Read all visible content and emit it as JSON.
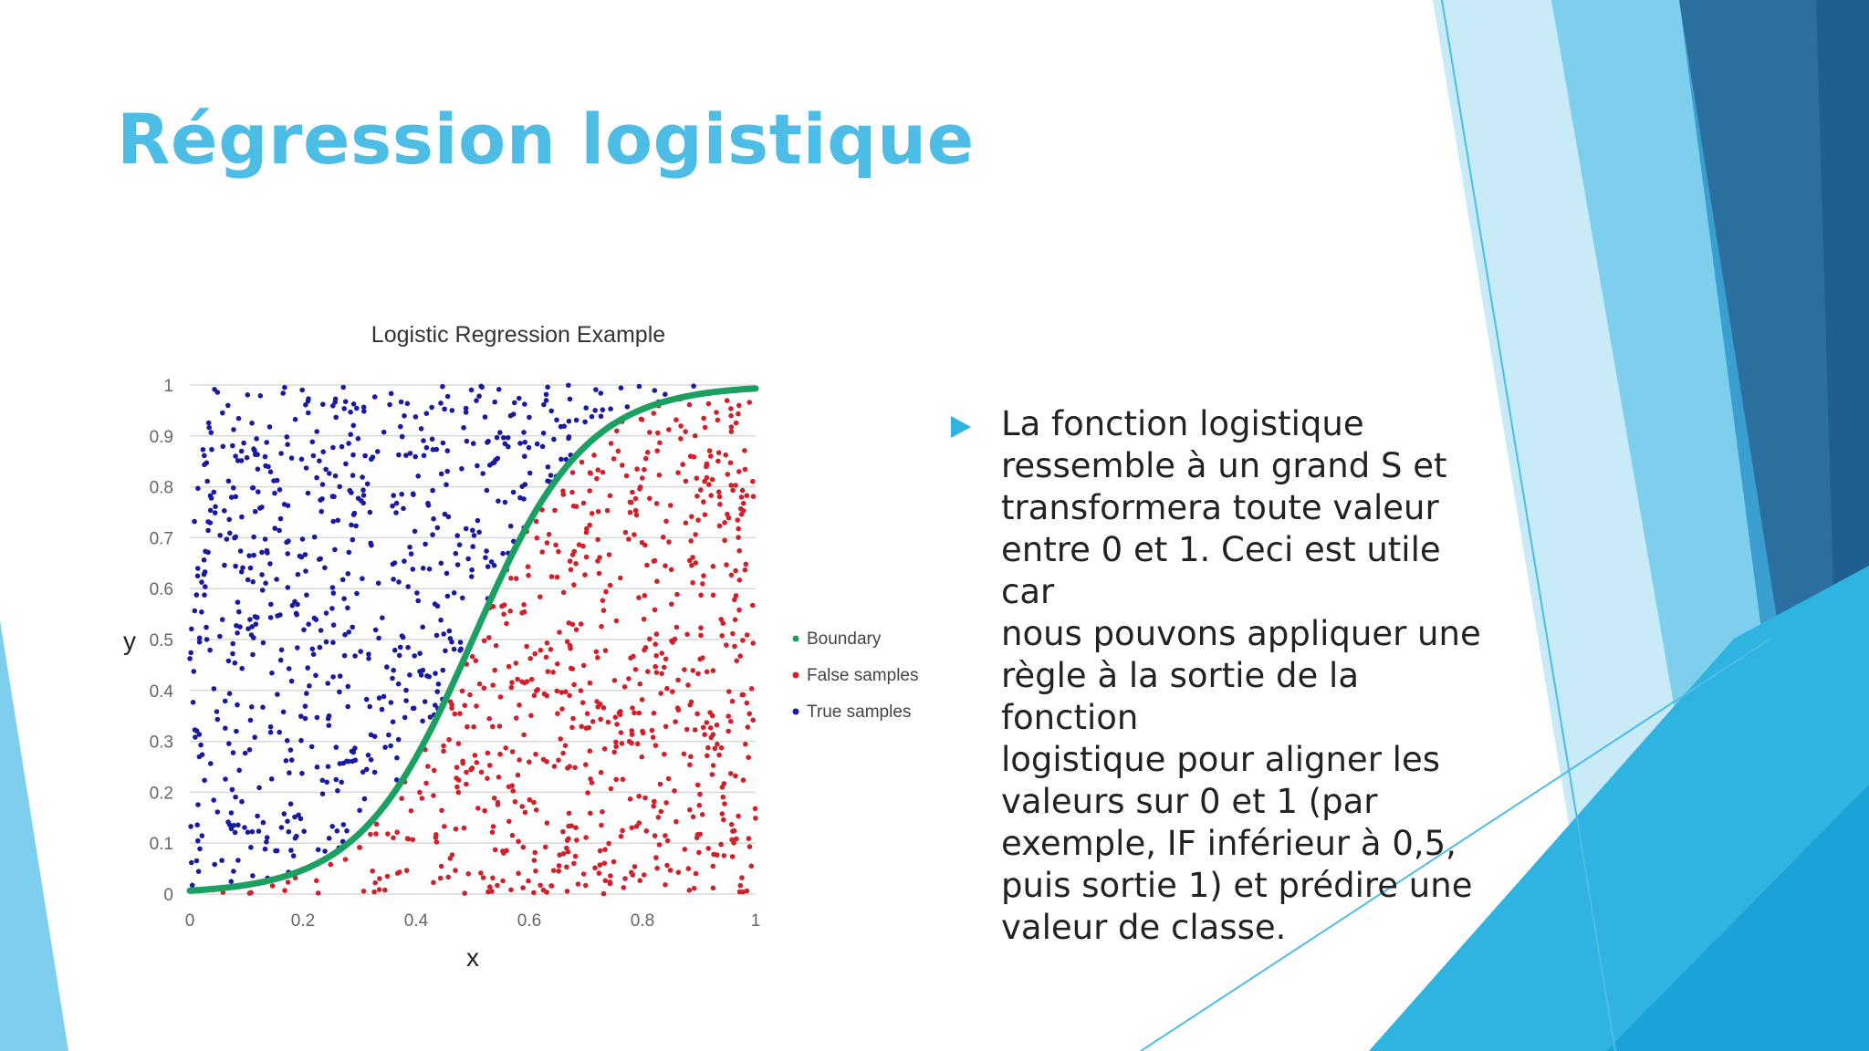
{
  "slide": {
    "title": "Régression logistique",
    "bullet": "La fonction logistique\nressemble à un grand S et\ntransformera toute valeur\nentre 0 et 1. Ceci est utile car\nnous pouvons appliquer une\nrègle à la sortie de la fonction\nlogistique pour aligner les\nvaleurs sur 0 et 1 (par\nexemple, IF inférieur à 0,5,\npuis sortie 1) et prédire une\nvaleur de classe.",
    "bullet_icon": "triangle-bullet-icon",
    "colors": {
      "title": "#4dbde6",
      "accent_light": "#7ecfee",
      "accent_mid": "#2fb3e0",
      "accent_dark": "#1f6ea3"
    }
  },
  "chart_data": {
    "type": "scatter",
    "title": "Logistic Regression Example",
    "xlabel": "x",
    "ylabel": "y",
    "xlim": [
      0,
      1
    ],
    "ylim": [
      0,
      1
    ],
    "x_ticks": [
      "0",
      "0.2",
      "0.4",
      "0.6",
      "0.8",
      "1"
    ],
    "y_ticks": [
      "0",
      "0.1",
      "0.2",
      "0.3",
      "0.4",
      "0.5",
      "0.6",
      "0.7",
      "0.8",
      "0.9",
      "1"
    ],
    "grid": "horizontal",
    "legend_position": "right",
    "boundary": {
      "function": "logistic",
      "midpoint": 0.5,
      "steepness": 10
    },
    "series": [
      {
        "name": "Boundary",
        "color": "#1aa060"
      },
      {
        "name": "False samples",
        "color": "#d0202a"
      },
      {
        "name": "True samples",
        "color": "#1a1aa0"
      }
    ],
    "points": {
      "count": 1400,
      "distribution": "uniform over [0,1]x[0,1]; True samples above boundary, False samples below"
    }
  }
}
